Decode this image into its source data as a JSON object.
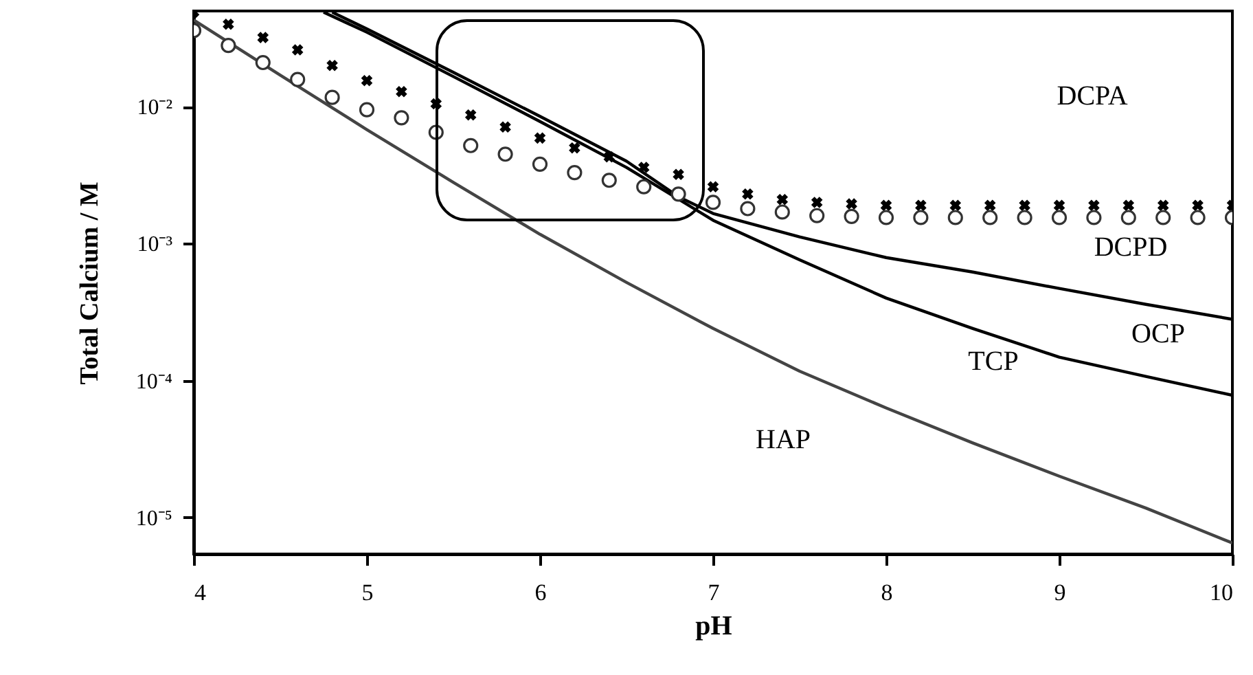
{
  "chart_data": {
    "type": "line",
    "xlabel": "pH",
    "ylabel": "Total Calcium / M",
    "xlim": [
      4,
      10
    ],
    "xticks": [
      4,
      5,
      6,
      7,
      8,
      9,
      10
    ],
    "ylim": [
      5.4e-06,
      0.05
    ],
    "log": true,
    "yticks": [
      {
        "value": 0.01,
        "label": "10⁻²"
      },
      {
        "value": 0.001,
        "label": "10⁻³"
      },
      {
        "value": 0.0001,
        "label": "10⁻⁴"
      },
      {
        "value": 1e-05,
        "label": "10⁻⁵"
      }
    ],
    "grid": false,
    "series": [
      {
        "type": "scatter",
        "marker": "cross",
        "color": "#000000",
        "x": [
          4.0,
          4.2,
          4.4,
          4.6,
          4.8,
          5.0,
          5.2,
          5.4,
          5.6,
          5.8,
          6.0,
          6.2,
          6.4,
          6.6,
          6.8,
          7.0,
          7.2,
          7.4,
          7.6,
          7.8,
          8.0,
          8.2,
          8.4,
          8.6,
          8.8,
          9.0,
          9.2,
          9.4,
          9.6,
          9.8,
          10.0
        ],
        "values": [
          0.049,
          0.04,
          0.032,
          0.026,
          0.02,
          0.0155,
          0.0129,
          0.0105,
          0.0087,
          0.0071,
          0.0059,
          0.005,
          0.0043,
          0.0036,
          0.0032,
          0.0026,
          0.0023,
          0.0021,
          0.002,
          0.00195,
          0.0019,
          0.0019,
          0.0019,
          0.0019,
          0.0019,
          0.0019,
          0.0019,
          0.0019,
          0.0019,
          0.0019,
          0.0019
        ]
      },
      {
        "type": "scatter",
        "marker": "circle",
        "color": "#333333",
        "x": [
          4.0,
          4.2,
          4.4,
          4.6,
          4.8,
          5.0,
          5.2,
          5.4,
          5.6,
          5.8,
          6.0,
          6.2,
          6.4,
          6.6,
          6.8,
          7.0,
          7.2,
          7.4,
          7.6,
          7.8,
          8.0,
          8.2,
          8.4,
          8.6,
          8.8,
          9.0,
          9.2,
          9.4,
          9.6,
          9.8,
          10.0
        ],
        "values": [
          0.036,
          0.028,
          0.021,
          0.0158,
          0.0117,
          0.0095,
          0.0083,
          0.0065,
          0.0052,
          0.0045,
          0.0038,
          0.0033,
          0.0029,
          0.0026,
          0.0023,
          0.002,
          0.0018,
          0.0017,
          0.0016,
          0.00158,
          0.00155,
          0.00155,
          0.00155,
          0.00155,
          0.00155,
          0.00155,
          0.00155,
          0.00155,
          0.00155,
          0.00155,
          0.00155
        ]
      },
      {
        "color": "#000000",
        "x": [
          4.8,
          5.0,
          5.5,
          6.0,
          6.5,
          6.8,
          7.0,
          7.5,
          8.0,
          8.5,
          9.0,
          9.5,
          10.0
        ],
        "values": [
          0.049,
          0.037,
          0.0178,
          0.0085,
          0.004,
          0.0022,
          0.00166,
          0.00112,
          0.00079,
          0.00062,
          0.00047,
          0.00036,
          0.00028
        ]
      },
      {
        "color": "#000000",
        "x": [
          4.75,
          5.0,
          5.5,
          6.0,
          6.5,
          7.0,
          7.5,
          8.0,
          8.5,
          9.0,
          9.5,
          10.0
        ],
        "values": [
          0.049,
          0.035,
          0.0166,
          0.0078,
          0.0036,
          0.00148,
          0.00076,
          0.0004,
          0.00024,
          0.000148,
          0.000107,
          7.8e-05
        ]
      },
      {
        "color": "#444444",
        "x": [
          4.0,
          4.5,
          5.0,
          5.5,
          6.0,
          6.5,
          7.0,
          7.5,
          8.0,
          8.5,
          9.0,
          9.5,
          10.0
        ],
        "values": [
          0.043,
          0.017,
          0.0068,
          0.0028,
          0.00117,
          0.00052,
          0.00024,
          0.000117,
          6.3e-05,
          3.5e-05,
          2e-05,
          1.17e-05,
          6.5e-06
        ]
      }
    ],
    "annotations": [
      "DCPA",
      "DCPD",
      "OCP",
      "TCP",
      "HAP"
    ]
  }
}
